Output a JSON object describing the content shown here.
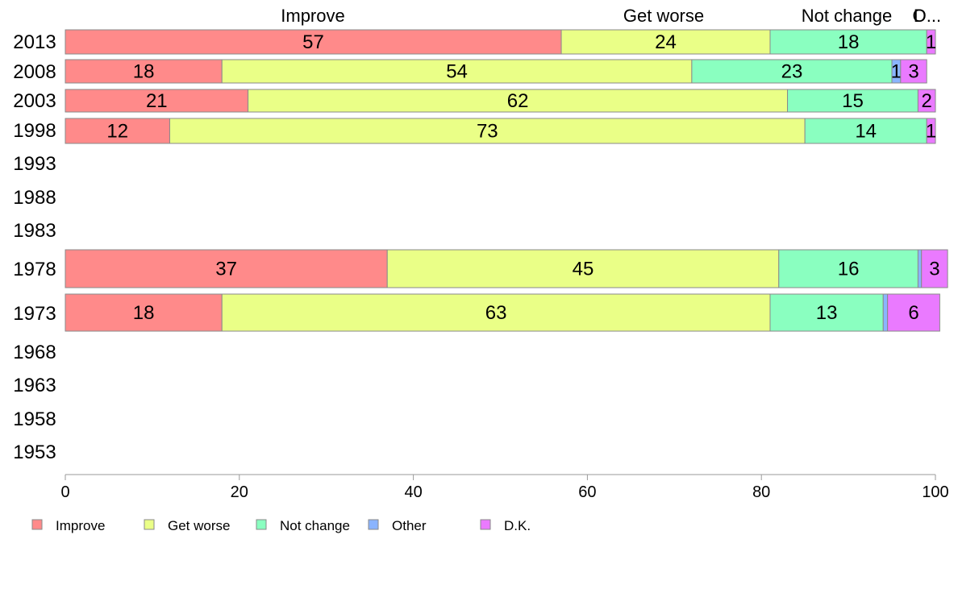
{
  "chart_data": {
    "type": "bar",
    "orientation": "horizontal",
    "stacked": true,
    "categories": [
      "2013",
      "2008",
      "2003",
      "1998",
      "1993",
      "1988",
      "1983",
      "1978",
      "1973",
      "1968",
      "1963",
      "1958",
      "1953"
    ],
    "series": [
      {
        "name": "Improve",
        "color": "#ff8a8a",
        "values": [
          57,
          18,
          21,
          12,
          null,
          null,
          null,
          37,
          18,
          null,
          null,
          null,
          null
        ]
      },
      {
        "name": "Get worse",
        "color": "#eaff87",
        "values": [
          24,
          54,
          62,
          73,
          null,
          null,
          null,
          45,
          63,
          null,
          null,
          null,
          null
        ]
      },
      {
        "name": "Not change",
        "color": "#8affc0",
        "values": [
          18,
          23,
          15,
          14,
          null,
          null,
          null,
          16,
          13,
          null,
          null,
          null,
          null
        ]
      },
      {
        "name": "Other",
        "color": "#8ab4ff",
        "values": [
          0,
          1,
          0,
          0,
          null,
          null,
          null,
          0.4,
          0.5,
          null,
          null,
          null,
          null
        ]
      },
      {
        "name": "D.K.",
        "color": "#ea7aff",
        "values": [
          1,
          3,
          2,
          1,
          null,
          null,
          null,
          3,
          6,
          null,
          null,
          null,
          null
        ]
      }
    ],
    "data_labels": [
      [
        "57",
        "24",
        "18",
        "",
        "1"
      ],
      [
        "18",
        "54",
        "23",
        "1",
        "3"
      ],
      [
        "21",
        "62",
        "15",
        "",
        "2"
      ],
      [
        "12",
        "73",
        "14",
        "",
        "1"
      ],
      [],
      [],
      [],
      [
        "37",
        "45",
        "16",
        "",
        "3"
      ],
      [
        "18",
        "63",
        "13",
        "",
        "6"
      ],
      [],
      [],
      [],
      []
    ],
    "top_labels": [
      "Improve",
      "Get worse",
      "Not change",
      "O",
      "D..."
    ],
    "xlim": [
      0,
      100
    ],
    "xticks": [
      "0",
      "20",
      "40",
      "60",
      "80",
      "100"
    ],
    "grid": false,
    "legend_position": "bottom"
  }
}
